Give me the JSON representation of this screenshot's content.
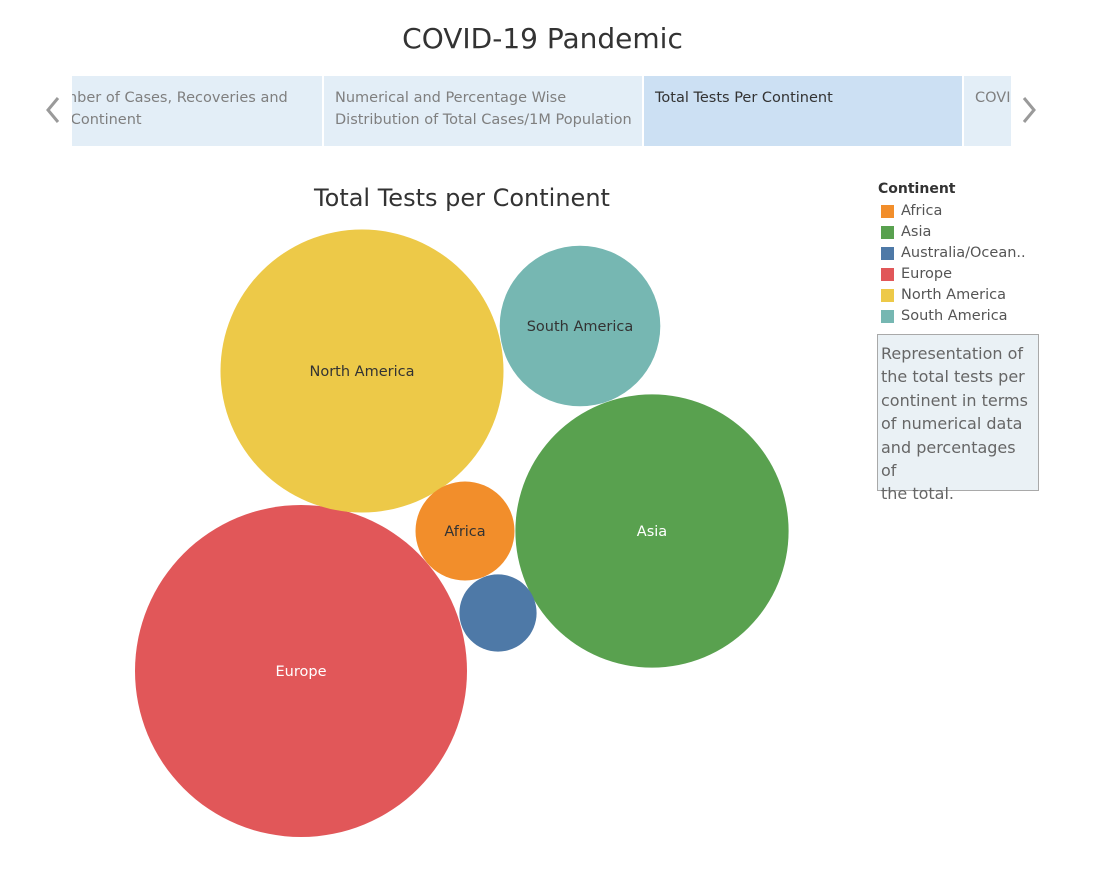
{
  "story": {
    "title": "COVID-19 Pandemic"
  },
  "nav": {
    "prev_icon": "chevron-left-icon",
    "next_icon": "chevron-right-icon"
  },
  "tabs": [
    {
      "lines": [
        "Number of Cases, Recoveries and",
        "Per Continent"
      ],
      "active": false
    },
    {
      "lines": [
        "Numerical and Percentage Wise",
        "Distribution of Total Cases/1M Population"
      ],
      "active": false
    },
    {
      "lines": [
        "Total Tests Per Continent"
      ],
      "active": true
    },
    {
      "lines": [
        "COVID"
      ],
      "active": false
    }
  ],
  "sheet": {
    "title": "Total Tests per Continent"
  },
  "legend": {
    "title": "Continent",
    "items": [
      {
        "label": "Africa",
        "color": "#f28e2b"
      },
      {
        "label": "Asia",
        "color": "#59a14f"
      },
      {
        "label": "Australia/Ocean..",
        "color": "#4e79a7"
      },
      {
        "label": "Europe",
        "color": "#e15759"
      },
      {
        "label": "North America",
        "color": "#edc948"
      },
      {
        "label": "South America",
        "color": "#76b7b2"
      }
    ]
  },
  "caption": {
    "lines": [
      "Representation of",
      "the total tests per",
      "continent in terms",
      "of numerical data",
      "and percentages of",
      "the total."
    ]
  },
  "chart_data": {
    "type": "bubble",
    "title": "Total Tests per Continent",
    "size_measure": "Total Tests",
    "legend_placement": "right",
    "bubbles": [
      {
        "category": "Europe",
        "label": "Europe",
        "relative_size": 1.0,
        "color": "#e15759",
        "label_color": "#ffffff"
      },
      {
        "category": "North America",
        "label": "North America",
        "relative_size": 0.727,
        "color": "#edc948",
        "label_color": "#333333"
      },
      {
        "category": "Asia",
        "label": "Asia",
        "relative_size": 0.677,
        "color": "#59a14f",
        "label_color": "#ffffff"
      },
      {
        "category": "South America",
        "label": "South America",
        "relative_size": 0.234,
        "color": "#76b7b2",
        "label_color": "#333333"
      },
      {
        "category": "Africa",
        "label": "Africa",
        "relative_size": 0.089,
        "color": "#f28e2b",
        "label_color": "#333333"
      },
      {
        "category": "Australia/Oceania",
        "label": "",
        "relative_size": 0.054,
        "color": "#4e79a7",
        "label_color": "#ffffff"
      }
    ]
  }
}
